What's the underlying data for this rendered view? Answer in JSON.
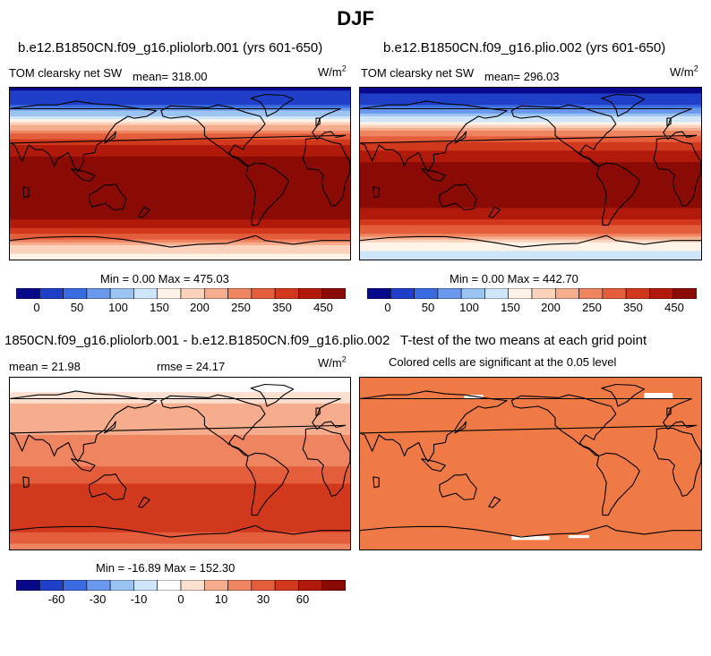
{
  "page_title": "DJF",
  "colors": {
    "abs_scale": [
      "#08088a",
      "#1f3fc8",
      "#3a6be0",
      "#6a98ec",
      "#9cc4f2",
      "#cfe6fa",
      "#fff2e6",
      "#fbd3bd",
      "#f6ad8d",
      "#ef8460",
      "#e55e3c",
      "#d2391c",
      "#b11a0b",
      "#8a0a05"
    ],
    "diff_scale": [
      "#08088a",
      "#1f3fc8",
      "#3a6be0",
      "#6a98ec",
      "#9cc4f2",
      "#cfe6fa",
      "#ffffff",
      "#fbe0cf",
      "#f6ad8d",
      "#ef8460",
      "#e55e3c",
      "#d2391c",
      "#b11a0b",
      "#8a0a05"
    ],
    "sig": "#ef7a45",
    "land": "#000000"
  },
  "panels": [
    {
      "title": "b.e12.B1850CN.f09_g16.pliolorb.001 (yrs 601-650)",
      "variable": "TOM clearsky net SW",
      "mean_label": "mean= 318.00",
      "units": "W/m2",
      "minmax": "Min =   0.00 Max = 475.03"
    },
    {
      "title": "b.e12.B1850CN.f09_g16.plio.002 (yrs 601-650)",
      "variable": "TOM clearsky net SW",
      "mean_label": "mean= 296.03",
      "units": "W/m2",
      "minmax": "Min =   0.00 Max = 442.70"
    },
    {
      "title": "1850CN.f09_g16.pliolorb.001 - b.e12.B1850CN.f09_g16.plio.002",
      "mean_label": "mean =  21.98",
      "rmse_label": "rmse =  24.17",
      "units": "W/m2",
      "minmax": "Min = -16.89 Max = 152.30"
    },
    {
      "title": "T-test of the two means at each grid point",
      "subtitle": "Colored cells are significant at the 0.05 level"
    }
  ],
  "chart_data": [
    {
      "type": "heatmap",
      "title": "b.e12.B1850CN.f09_g16.pliolorb.001 (yrs 601-650)",
      "colorbar_ticks": [
        "0",
        "50",
        "100",
        "150",
        "200",
        "250",
        "350",
        "450"
      ],
      "lat_profile": [
        {
          "lat": 90,
          "value": 20
        },
        {
          "lat": 75,
          "value": 40
        },
        {
          "lat": 60,
          "value": 130
        },
        {
          "lat": 45,
          "value": 230
        },
        {
          "lat": 30,
          "value": 350
        },
        {
          "lat": 15,
          "value": 415
        },
        {
          "lat": 0,
          "value": 440
        },
        {
          "lat": -15,
          "value": 465
        },
        {
          "lat": -30,
          "value": 470
        },
        {
          "lat": -45,
          "value": 420
        },
        {
          "lat": -60,
          "value": 330
        },
        {
          "lat": -75,
          "value": 200
        },
        {
          "lat": -90,
          "value": 160
        }
      ]
    },
    {
      "type": "heatmap",
      "title": "b.e12.B1850CN.f09_g16.plio.002 (yrs 601-650)",
      "colorbar_ticks": [
        "0",
        "50",
        "100",
        "150",
        "200",
        "250",
        "350",
        "450"
      ],
      "lat_profile": [
        {
          "lat": 90,
          "value": 15
        },
        {
          "lat": 75,
          "value": 35
        },
        {
          "lat": 60,
          "value": 120
        },
        {
          "lat": 45,
          "value": 215
        },
        {
          "lat": 30,
          "value": 330
        },
        {
          "lat": 15,
          "value": 395
        },
        {
          "lat": 0,
          "value": 415
        },
        {
          "lat": -15,
          "value": 425
        },
        {
          "lat": -30,
          "value": 420
        },
        {
          "lat": -45,
          "value": 360
        },
        {
          "lat": -60,
          "value": 260
        },
        {
          "lat": -75,
          "value": 160
        },
        {
          "lat": -90,
          "value": 130
        }
      ]
    },
    {
      "type": "heatmap",
      "title": "1850CN.f09_g16.pliolorb.001 - b.e12.B1850CN.f09_g16.plio.002",
      "colorbar_ticks": [
        "-60",
        "-30",
        "-10",
        "0",
        "10",
        "30",
        "60"
      ],
      "lat_profile": [
        {
          "lat": 90,
          "value": 2
        },
        {
          "lat": 75,
          "value": 5
        },
        {
          "lat": 60,
          "value": 12
        },
        {
          "lat": 45,
          "value": 15
        },
        {
          "lat": 30,
          "value": 20
        },
        {
          "lat": 15,
          "value": 22
        },
        {
          "lat": 0,
          "value": 28
        },
        {
          "lat": -15,
          "value": 42
        },
        {
          "lat": -30,
          "value": 48
        },
        {
          "lat": -45,
          "value": 55
        },
        {
          "lat": -60,
          "value": 60
        },
        {
          "lat": -75,
          "value": 40
        },
        {
          "lat": -90,
          "value": 25
        }
      ]
    },
    {
      "type": "heatmap",
      "title": "T-test of the two means at each grid point",
      "significant_fraction": 0.99
    }
  ]
}
